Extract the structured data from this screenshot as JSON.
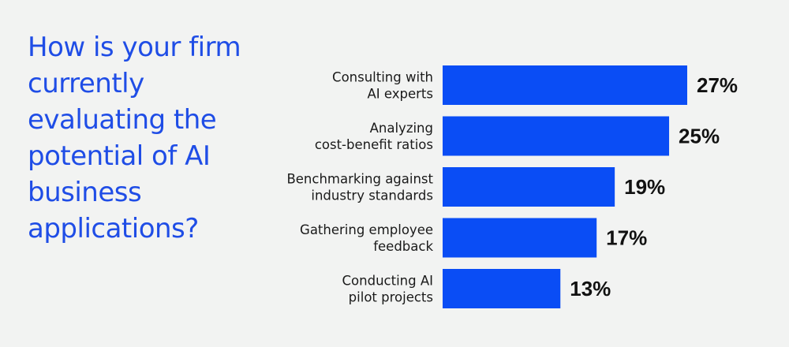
{
  "colors": {
    "background": "#f2f3f2",
    "accent": "#1f4de6",
    "bar": "#0a4df5",
    "text": "#1a1a1a"
  },
  "chart_data": {
    "type": "bar",
    "orientation": "horizontal",
    "title": "How is your firm currently evaluating the potential of AI business applications?",
    "categories": [
      [
        "Consulting with",
        "AI experts"
      ],
      [
        "Analyzing",
        "cost-benefit ratios"
      ],
      [
        "Benchmarking against",
        "industry standards"
      ],
      [
        "Gathering employee",
        "feedback"
      ],
      [
        "Conducting AI",
        "pilot projects"
      ]
    ],
    "values": [
      27,
      25,
      19,
      17,
      13
    ],
    "value_labels": [
      "27%",
      "25%",
      "19%",
      "17%",
      "13%"
    ],
    "xlim": [
      0,
      27
    ],
    "grid": false,
    "legend": "none"
  }
}
